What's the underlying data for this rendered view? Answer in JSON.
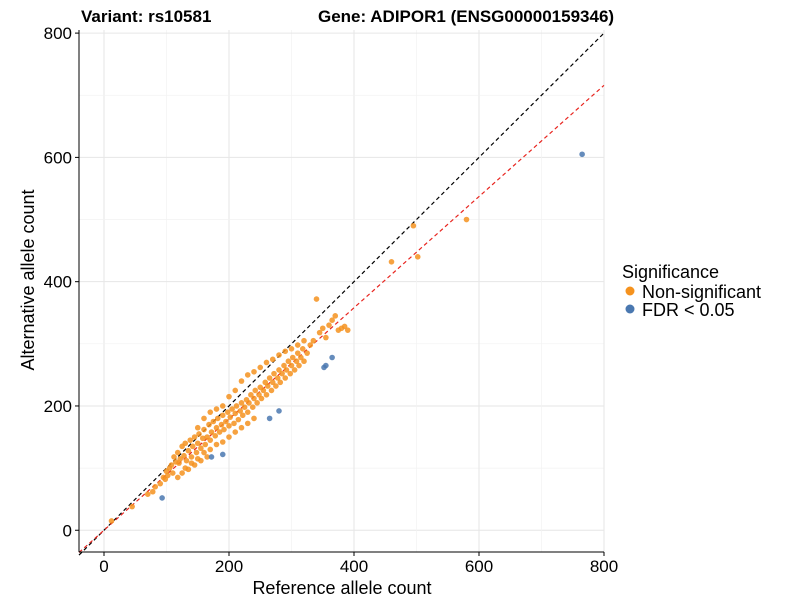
{
  "chart_data": {
    "type": "scatter",
    "title_left": "Variant: rs10581",
    "title_right": "Gene: ADIPOR1 (ENSG00000159346)",
    "xlabel": "Reference allele count",
    "ylabel": "Alternative allele count",
    "xlim": [
      -40,
      800
    ],
    "ylim": [
      -35,
      805
    ],
    "xticks": [
      0,
      200,
      400,
      600,
      800
    ],
    "yticks": [
      0,
      200,
      400,
      600,
      800
    ],
    "grid": true,
    "reference_lines": [
      {
        "name": "identity",
        "slope": 1.0,
        "intercept": 0,
        "color": "#000000",
        "dash": "dashed"
      },
      {
        "name": "fit",
        "slope": 0.895,
        "intercept": 0,
        "color": "#e8251f",
        "dash": "dashed"
      }
    ],
    "legend": {
      "title": "Significance",
      "placement": "right",
      "entries": [
        {
          "label": "Non-significant",
          "color": "#f5921e"
        },
        {
          "label": "FDR < 0.05",
          "color": "#4a78b0"
        }
      ]
    },
    "series": [
      {
        "name": "Non-significant",
        "color": "#f5921e",
        "points": [
          [
            12,
            15
          ],
          [
            45,
            38
          ],
          [
            70,
            58
          ],
          [
            78,
            62
          ],
          [
            82,
            70
          ],
          [
            90,
            75
          ],
          [
            95,
            85
          ],
          [
            98,
            82
          ],
          [
            100,
            95
          ],
          [
            102,
            88
          ],
          [
            105,
            100
          ],
          [
            108,
            105
          ],
          [
            110,
            92
          ],
          [
            112,
            118
          ],
          [
            115,
            110
          ],
          [
            118,
            125
          ],
          [
            120,
            108
          ],
          [
            122,
            115
          ],
          [
            125,
            135
          ],
          [
            128,
            120
          ],
          [
            130,
            140
          ],
          [
            132,
            112
          ],
          [
            135,
            128
          ],
          [
            138,
            145
          ],
          [
            140,
            118
          ],
          [
            142,
            135
          ],
          [
            145,
            150
          ],
          [
            148,
            125
          ],
          [
            150,
            140
          ],
          [
            152,
            155
          ],
          [
            155,
            132
          ],
          [
            158,
            148
          ],
          [
            160,
            162
          ],
          [
            162,
            138
          ],
          [
            165,
            150
          ],
          [
            168,
            170
          ],
          [
            170,
            145
          ],
          [
            172,
            158
          ],
          [
            175,
            175
          ],
          [
            178,
            152
          ],
          [
            180,
            165
          ],
          [
            182,
            180
          ],
          [
            185,
            158
          ],
          [
            188,
            170
          ],
          [
            190,
            185
          ],
          [
            192,
            162
          ],
          [
            195,
            175
          ],
          [
            198,
            190
          ],
          [
            200,
            168
          ],
          [
            202,
            182
          ],
          [
            205,
            195
          ],
          [
            208,
            172
          ],
          [
            210,
            188
          ],
          [
            212,
            200
          ],
          [
            215,
            178
          ],
          [
            218,
            192
          ],
          [
            220,
            205
          ],
          [
            222,
            185
          ],
          [
            225,
            198
          ],
          [
            228,
            210
          ],
          [
            230,
            190
          ],
          [
            232,
            205
          ],
          [
            235,
            218
          ],
          [
            238,
            198
          ],
          [
            240,
            212
          ],
          [
            242,
            225
          ],
          [
            245,
            205
          ],
          [
            248,
            218
          ],
          [
            250,
            230
          ],
          [
            252,
            212
          ],
          [
            255,
            225
          ],
          [
            258,
            238
          ],
          [
            260,
            218
          ],
          [
            262,
            232
          ],
          [
            265,
            245
          ],
          [
            268,
            225
          ],
          [
            270,
            238
          ],
          [
            272,
            252
          ],
          [
            275,
            232
          ],
          [
            278,
            245
          ],
          [
            280,
            258
          ],
          [
            282,
            238
          ],
          [
            285,
            252
          ],
          [
            288,
            265
          ],
          [
            290,
            245
          ],
          [
            292,
            258
          ],
          [
            295,
            272
          ],
          [
            298,
            252
          ],
          [
            300,
            265
          ],
          [
            302,
            278
          ],
          [
            305,
            258
          ],
          [
            308,
            272
          ],
          [
            310,
            285
          ],
          [
            312,
            265
          ],
          [
            315,
            278
          ],
          [
            318,
            292
          ],
          [
            320,
            272
          ],
          [
            325,
            285
          ],
          [
            330,
            298
          ],
          [
            335,
            305
          ],
          [
            340,
            372
          ],
          [
            345,
            318
          ],
          [
            350,
            325
          ],
          [
            355,
            310
          ],
          [
            360,
            330
          ],
          [
            365,
            338
          ],
          [
            370,
            345
          ],
          [
            375,
            322
          ],
          [
            380,
            325
          ],
          [
            385,
            328
          ],
          [
            390,
            322
          ],
          [
            150,
            165
          ],
          [
            160,
            180
          ],
          [
            170,
            190
          ],
          [
            180,
            195
          ],
          [
            190,
            200
          ],
          [
            200,
            215
          ],
          [
            210,
            225
          ],
          [
            220,
            240
          ],
          [
            230,
            250
          ],
          [
            240,
            255
          ],
          [
            250,
            262
          ],
          [
            260,
            270
          ],
          [
            270,
            275
          ],
          [
            280,
            282
          ],
          [
            290,
            288
          ],
          [
            300,
            292
          ],
          [
            310,
            298
          ],
          [
            320,
            305
          ],
          [
            130,
            100
          ],
          [
            140,
            108
          ],
          [
            150,
            115
          ],
          [
            160,
            125
          ],
          [
            170,
            130
          ],
          [
            180,
            138
          ],
          [
            190,
            142
          ],
          [
            200,
            150
          ],
          [
            210,
            158
          ],
          [
            220,
            165
          ],
          [
            230,
            172
          ],
          [
            240,
            180
          ],
          [
            118,
            85
          ],
          [
            125,
            92
          ],
          [
            135,
            98
          ],
          [
            145,
            105
          ],
          [
            155,
            112
          ],
          [
            165,
            118
          ],
          [
            460,
            432
          ],
          [
            495,
            490
          ],
          [
            502,
            440
          ],
          [
            580,
            500
          ]
        ]
      },
      {
        "name": "FDR < 0.05",
        "color": "#4a78b0",
        "points": [
          [
            93,
            52
          ],
          [
            172,
            118
          ],
          [
            190,
            122
          ],
          [
            265,
            180
          ],
          [
            280,
            192
          ],
          [
            352,
            262
          ],
          [
            355,
            265
          ],
          [
            365,
            278
          ],
          [
            765,
            605
          ]
        ]
      }
    ]
  }
}
